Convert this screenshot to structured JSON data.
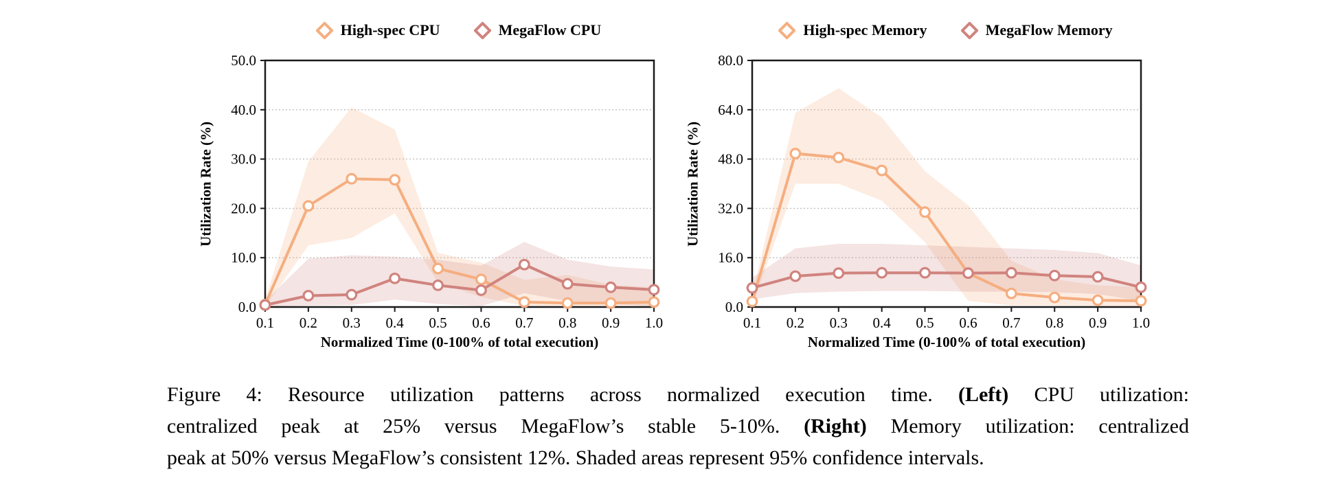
{
  "figure": {
    "caption": {
      "lines": [
        [
          {
            "t": "Figure 4:  Resource utilization patterns across normalized execution time.  ",
            "b": false
          },
          {
            "t": "(Left)",
            "b": true
          },
          {
            "t": " CPU utilization:",
            "b": false
          }
        ],
        [
          {
            "t": "centralized peak at 25% versus MegaFlow’s stable 5-10%. ",
            "b": false
          },
          {
            "t": "(Right)",
            "b": true
          },
          {
            "t": " Memory utilization: centralized",
            "b": false
          }
        ],
        [
          {
            "t": "peak at 50% versus MegaFlow’s consistent 12%. Shaded areas represent 95% confidence intervals.",
            "b": false
          }
        ]
      ]
    }
  },
  "colors": {
    "axis": "#1a1a1a",
    "gridline": "#bfbfbf",
    "marker_fill": "#ffffff"
  },
  "chart_data": [
    {
      "type": "line",
      "title": "",
      "xlabel": "Normalized Time (0-100% of total execution)",
      "ylabel": "Utilization Rate (%)",
      "x": [
        0.1,
        0.2,
        0.3,
        0.4,
        0.5,
        0.6,
        0.7,
        0.8,
        0.9,
        1.0
      ],
      "xtick_labels": [
        "0.1",
        "0.2",
        "0.3",
        "0.4",
        "0.5",
        "0.6",
        "0.7",
        "0.8",
        "0.9",
        "1.0"
      ],
      "ylim": [
        0,
        50
      ],
      "yticks": [
        0,
        10,
        20,
        30,
        40,
        50
      ],
      "ytick_labels": [
        "0.0",
        "10.0",
        "20.0",
        "30.0",
        "40.0",
        "50.0"
      ],
      "grid": "horizontal-dotted",
      "legend_position": "top-center",
      "ci_note": "shaded areas are 95% confidence intervals",
      "series": [
        {
          "name": "High-spec CPU",
          "color": "#F5AE80",
          "band_color": "rgba(246,179,134,0.25)",
          "values": [
            0.5,
            20.5,
            26.0,
            25.8,
            7.8,
            5.6,
            1.0,
            0.8,
            0.8,
            1.0
          ],
          "ci_upper": [
            1.5,
            29.5,
            40.5,
            36.0,
            11.0,
            9.0,
            5.5,
            6.5,
            4.5,
            4.0
          ],
          "ci_lower": [
            0.0,
            12.5,
            14.0,
            19.0,
            5.0,
            2.0,
            0.2,
            0.2,
            0.2,
            0.2
          ]
        },
        {
          "name": "MegaFlow CPU",
          "color": "#D0837E",
          "band_color": "rgba(205,133,128,0.22)",
          "values": [
            0.4,
            2.3,
            2.5,
            5.8,
            4.4,
            3.4,
            8.6,
            4.7,
            4.0,
            3.5
          ],
          "ci_upper": [
            1.2,
            9.8,
            10.5,
            10.2,
            9.6,
            8.4,
            13.2,
            9.6,
            8.2,
            7.6
          ],
          "ci_lower": [
            0.0,
            0.3,
            0.4,
            1.5,
            0.6,
            0.2,
            2.8,
            1.2,
            0.6,
            0.2
          ]
        }
      ]
    },
    {
      "type": "line",
      "title": "",
      "xlabel": "Normalized Time (0-100% of total execution)",
      "ylabel": "Utilization Rate (%)",
      "x": [
        0.1,
        0.2,
        0.3,
        0.4,
        0.5,
        0.6,
        0.7,
        0.8,
        0.9,
        1.0
      ],
      "xtick_labels": [
        "0.1",
        "0.2",
        "0.3",
        "0.4",
        "0.5",
        "0.6",
        "0.7",
        "0.8",
        "0.9",
        "1.0"
      ],
      "ylim": [
        0,
        80
      ],
      "yticks": [
        0,
        16,
        32,
        48,
        64,
        80
      ],
      "ytick_labels": [
        "0.0",
        "16.0",
        "32.0",
        "48.0",
        "64.0",
        "80.0"
      ],
      "grid": "horizontal-dotted",
      "legend_position": "top-center",
      "ci_note": "shaded areas are 95% confidence intervals",
      "series": [
        {
          "name": "High-spec Memory",
          "color": "#F5AE80",
          "band_color": "rgba(246,179,134,0.25)",
          "values": [
            1.8,
            49.8,
            48.5,
            44.3,
            30.8,
            11.0,
            4.4,
            3.1,
            2.2,
            2.0
          ],
          "ci_upper": [
            4.0,
            63.0,
            71.0,
            61.5,
            44.0,
            33.0,
            15.0,
            9.0,
            7.0,
            6.5
          ],
          "ci_lower": [
            0.3,
            40.0,
            40.0,
            34.5,
            21.0,
            2.0,
            0.5,
            0.5,
            0.3,
            0.3
          ]
        },
        {
          "name": "MegaFlow Memory",
          "color": "#D0837E",
          "band_color": "rgba(205,133,128,0.22)",
          "values": [
            6.2,
            10.0,
            11.0,
            11.1,
            11.1,
            11.0,
            11.1,
            10.2,
            9.8,
            6.4
          ],
          "ci_upper": [
            9.5,
            19.0,
            20.5,
            20.5,
            20.0,
            19.5,
            19.0,
            18.5,
            17.5,
            13.5
          ],
          "ci_lower": [
            2.5,
            4.5,
            5.0,
            5.2,
            5.2,
            5.0,
            5.0,
            4.8,
            4.2,
            2.0
          ]
        }
      ]
    }
  ]
}
